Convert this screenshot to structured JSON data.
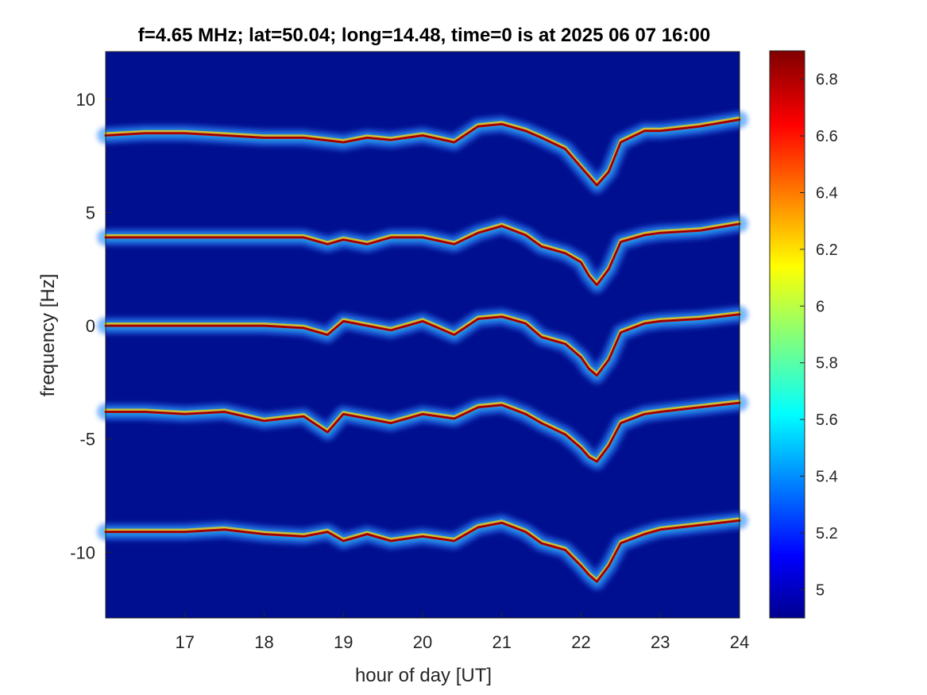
{
  "chart_data": {
    "type": "heatmap",
    "title": "f=4.65 MHz;  lat=50.04; long=14.48, time=0 is at 2025 06 07 16:00",
    "xlabel": "hour of day [UT]",
    "ylabel": "frequency [Hz]",
    "xlim": [
      16.0,
      24.0
    ],
    "ylim": [
      -12.9,
      12.1
    ],
    "xticks": [
      17,
      18,
      19,
      20,
      21,
      22,
      23,
      24
    ],
    "yticks": [
      10,
      5,
      0,
      -5,
      -10
    ],
    "ytick_labels": [
      "10",
      "5",
      "0",
      "-5",
      "-10"
    ],
    "xtick_labels": [
      "17",
      "18",
      "19",
      "20",
      "21",
      "22",
      "23",
      "24"
    ],
    "background_color": "#000f8f",
    "colorbar": {
      "range": [
        4.9,
        6.9
      ],
      "ticks": [
        6.8,
        6.6,
        6.4,
        6.2,
        6,
        5.8,
        5.6,
        5.4,
        5.2,
        5
      ],
      "tick_labels": [
        "6.8",
        "6.6",
        "6.4",
        "6.2",
        "6",
        "5.8",
        "5.6",
        "5.4",
        "5.2",
        "5"
      ],
      "colormap": "jet"
    },
    "series": [
      {
        "values": [
          [
            16.0,
            8.4
          ],
          [
            16.5,
            8.5
          ],
          [
            17.0,
            8.5
          ],
          [
            17.5,
            8.4
          ],
          [
            18.0,
            8.3
          ],
          [
            18.5,
            8.3
          ],
          [
            19.0,
            8.1
          ],
          [
            19.3,
            8.3
          ],
          [
            19.6,
            8.2
          ],
          [
            20.0,
            8.4
          ],
          [
            20.4,
            8.1
          ],
          [
            20.7,
            8.8
          ],
          [
            21.0,
            8.9
          ],
          [
            21.3,
            8.6
          ],
          [
            21.5,
            8.3
          ],
          [
            21.8,
            7.8
          ],
          [
            22.0,
            7.0
          ],
          [
            22.1,
            6.6
          ],
          [
            22.2,
            6.2
          ],
          [
            22.35,
            6.8
          ],
          [
            22.5,
            8.1
          ],
          [
            22.8,
            8.6
          ],
          [
            23.0,
            8.6
          ],
          [
            23.5,
            8.8
          ],
          [
            24.0,
            9.1
          ]
        ]
      },
      {
        "values": [
          [
            16.0,
            3.9
          ],
          [
            16.5,
            3.9
          ],
          [
            17.0,
            3.9
          ],
          [
            17.5,
            3.9
          ],
          [
            18.0,
            3.9
          ],
          [
            18.5,
            3.9
          ],
          [
            18.8,
            3.6
          ],
          [
            19.0,
            3.8
          ],
          [
            19.3,
            3.6
          ],
          [
            19.6,
            3.9
          ],
          [
            20.0,
            3.9
          ],
          [
            20.4,
            3.6
          ],
          [
            20.7,
            4.1
          ],
          [
            21.0,
            4.4
          ],
          [
            21.3,
            4.0
          ],
          [
            21.5,
            3.5
          ],
          [
            21.8,
            3.2
          ],
          [
            22.0,
            2.8
          ],
          [
            22.1,
            2.2
          ],
          [
            22.2,
            1.8
          ],
          [
            22.35,
            2.5
          ],
          [
            22.5,
            3.7
          ],
          [
            22.8,
            4.0
          ],
          [
            23.0,
            4.1
          ],
          [
            23.5,
            4.2
          ],
          [
            24.0,
            4.5
          ]
        ]
      },
      {
        "values": [
          [
            16.0,
            0.0
          ],
          [
            16.5,
            0.0
          ],
          [
            17.0,
            0.0
          ],
          [
            17.5,
            0.0
          ],
          [
            18.0,
            0.0
          ],
          [
            18.5,
            -0.1
          ],
          [
            18.8,
            -0.4
          ],
          [
            19.0,
            0.2
          ],
          [
            19.3,
            0.0
          ],
          [
            19.6,
            -0.2
          ],
          [
            20.0,
            0.2
          ],
          [
            20.4,
            -0.4
          ],
          [
            20.7,
            0.3
          ],
          [
            21.0,
            0.4
          ],
          [
            21.3,
            0.1
          ],
          [
            21.5,
            -0.5
          ],
          [
            21.8,
            -0.8
          ],
          [
            22.0,
            -1.4
          ],
          [
            22.1,
            -1.9
          ],
          [
            22.2,
            -2.2
          ],
          [
            22.35,
            -1.5
          ],
          [
            22.5,
            -0.3
          ],
          [
            22.8,
            0.1
          ],
          [
            23.0,
            0.2
          ],
          [
            23.5,
            0.3
          ],
          [
            24.0,
            0.5
          ]
        ]
      },
      {
        "values": [
          [
            16.0,
            -3.8
          ],
          [
            16.5,
            -3.8
          ],
          [
            17.0,
            -3.9
          ],
          [
            17.5,
            -3.8
          ],
          [
            18.0,
            -4.2
          ],
          [
            18.5,
            -4.0
          ],
          [
            18.8,
            -4.7
          ],
          [
            19.0,
            -3.9
          ],
          [
            19.3,
            -4.1
          ],
          [
            19.6,
            -4.3
          ],
          [
            20.0,
            -3.9
          ],
          [
            20.4,
            -4.1
          ],
          [
            20.7,
            -3.6
          ],
          [
            21.0,
            -3.5
          ],
          [
            21.3,
            -3.9
          ],
          [
            21.5,
            -4.3
          ],
          [
            21.8,
            -4.8
          ],
          [
            22.0,
            -5.4
          ],
          [
            22.1,
            -5.8
          ],
          [
            22.2,
            -6.0
          ],
          [
            22.35,
            -5.3
          ],
          [
            22.5,
            -4.3
          ],
          [
            22.8,
            -3.9
          ],
          [
            23.0,
            -3.8
          ],
          [
            23.5,
            -3.6
          ],
          [
            24.0,
            -3.4
          ]
        ]
      },
      {
        "values": [
          [
            16.0,
            -9.1
          ],
          [
            16.5,
            -9.1
          ],
          [
            17.0,
            -9.1
          ],
          [
            17.5,
            -9.0
          ],
          [
            18.0,
            -9.2
          ],
          [
            18.5,
            -9.3
          ],
          [
            18.8,
            -9.1
          ],
          [
            19.0,
            -9.5
          ],
          [
            19.3,
            -9.2
          ],
          [
            19.6,
            -9.5
          ],
          [
            20.0,
            -9.3
          ],
          [
            20.4,
            -9.5
          ],
          [
            20.7,
            -8.9
          ],
          [
            21.0,
            -8.7
          ],
          [
            21.3,
            -9.1
          ],
          [
            21.5,
            -9.6
          ],
          [
            21.8,
            -9.9
          ],
          [
            22.0,
            -10.6
          ],
          [
            22.1,
            -11.0
          ],
          [
            22.2,
            -11.3
          ],
          [
            22.35,
            -10.6
          ],
          [
            22.5,
            -9.6
          ],
          [
            22.8,
            -9.2
          ],
          [
            23.0,
            -9.0
          ],
          [
            23.5,
            -8.8
          ],
          [
            24.0,
            -8.6
          ]
        ]
      }
    ]
  }
}
